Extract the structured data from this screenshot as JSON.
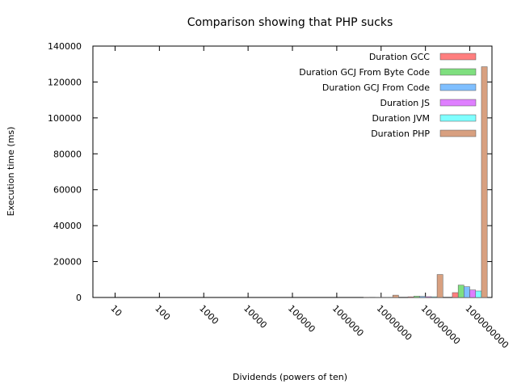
{
  "chart_data": {
    "type": "bar",
    "title": "Comparison showing that PHP sucks",
    "xlabel": "Dividends (powers of ten)",
    "ylabel": "Execution time (ms)",
    "ylim": [
      0,
      140000
    ],
    "yticks": [
      "0",
      "20000",
      "40000",
      "60000",
      "80000",
      "100000",
      "120000",
      "140000"
    ],
    "categories": [
      "10",
      "100",
      "1000",
      "10000",
      "100000",
      "1000000",
      "10000000",
      "100000000",
      "1000000000"
    ],
    "legend_position": "top-right",
    "grid": false,
    "series": [
      {
        "name": "Duration GCC",
        "color": "#ff7f7f",
        "values": [
          0,
          0,
          0,
          0,
          0,
          0,
          60,
          400,
          2700
        ]
      },
      {
        "name": "Duration GCJ From Byte Code",
        "color": "#7fdf7f",
        "values": [
          0,
          0,
          0,
          0,
          0,
          0,
          150,
          700,
          6900
        ]
      },
      {
        "name": "Duration GCJ From Code",
        "color": "#7fbfff",
        "values": [
          0,
          0,
          0,
          0,
          0,
          0,
          120,
          600,
          6000
        ]
      },
      {
        "name": "Duration JS",
        "color": "#df7fff",
        "values": [
          0,
          0,
          0,
          0,
          0,
          0,
          80,
          450,
          4200
        ]
      },
      {
        "name": "Duration JVM",
        "color": "#7fffff",
        "values": [
          0,
          0,
          0,
          0,
          0,
          0,
          70,
          400,
          3600
        ]
      },
      {
        "name": "Duration PHP",
        "color": "#d8a080",
        "values": [
          0,
          0,
          0,
          0,
          0,
          0,
          1300,
          12800,
          128500
        ]
      }
    ]
  }
}
